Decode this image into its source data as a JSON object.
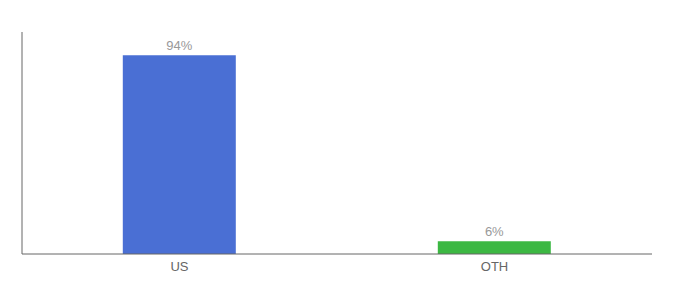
{
  "chart_data": {
    "type": "bar",
    "categories": [
      "US",
      "OTH"
    ],
    "values": [
      94,
      6
    ],
    "value_labels": [
      "94%",
      "6%"
    ],
    "colors": [
      "#4a6fd4",
      "#3cb843"
    ],
    "ylim": [
      0,
      105
    ],
    "data_labels": true,
    "tick_labels": "x",
    "grid": false
  }
}
